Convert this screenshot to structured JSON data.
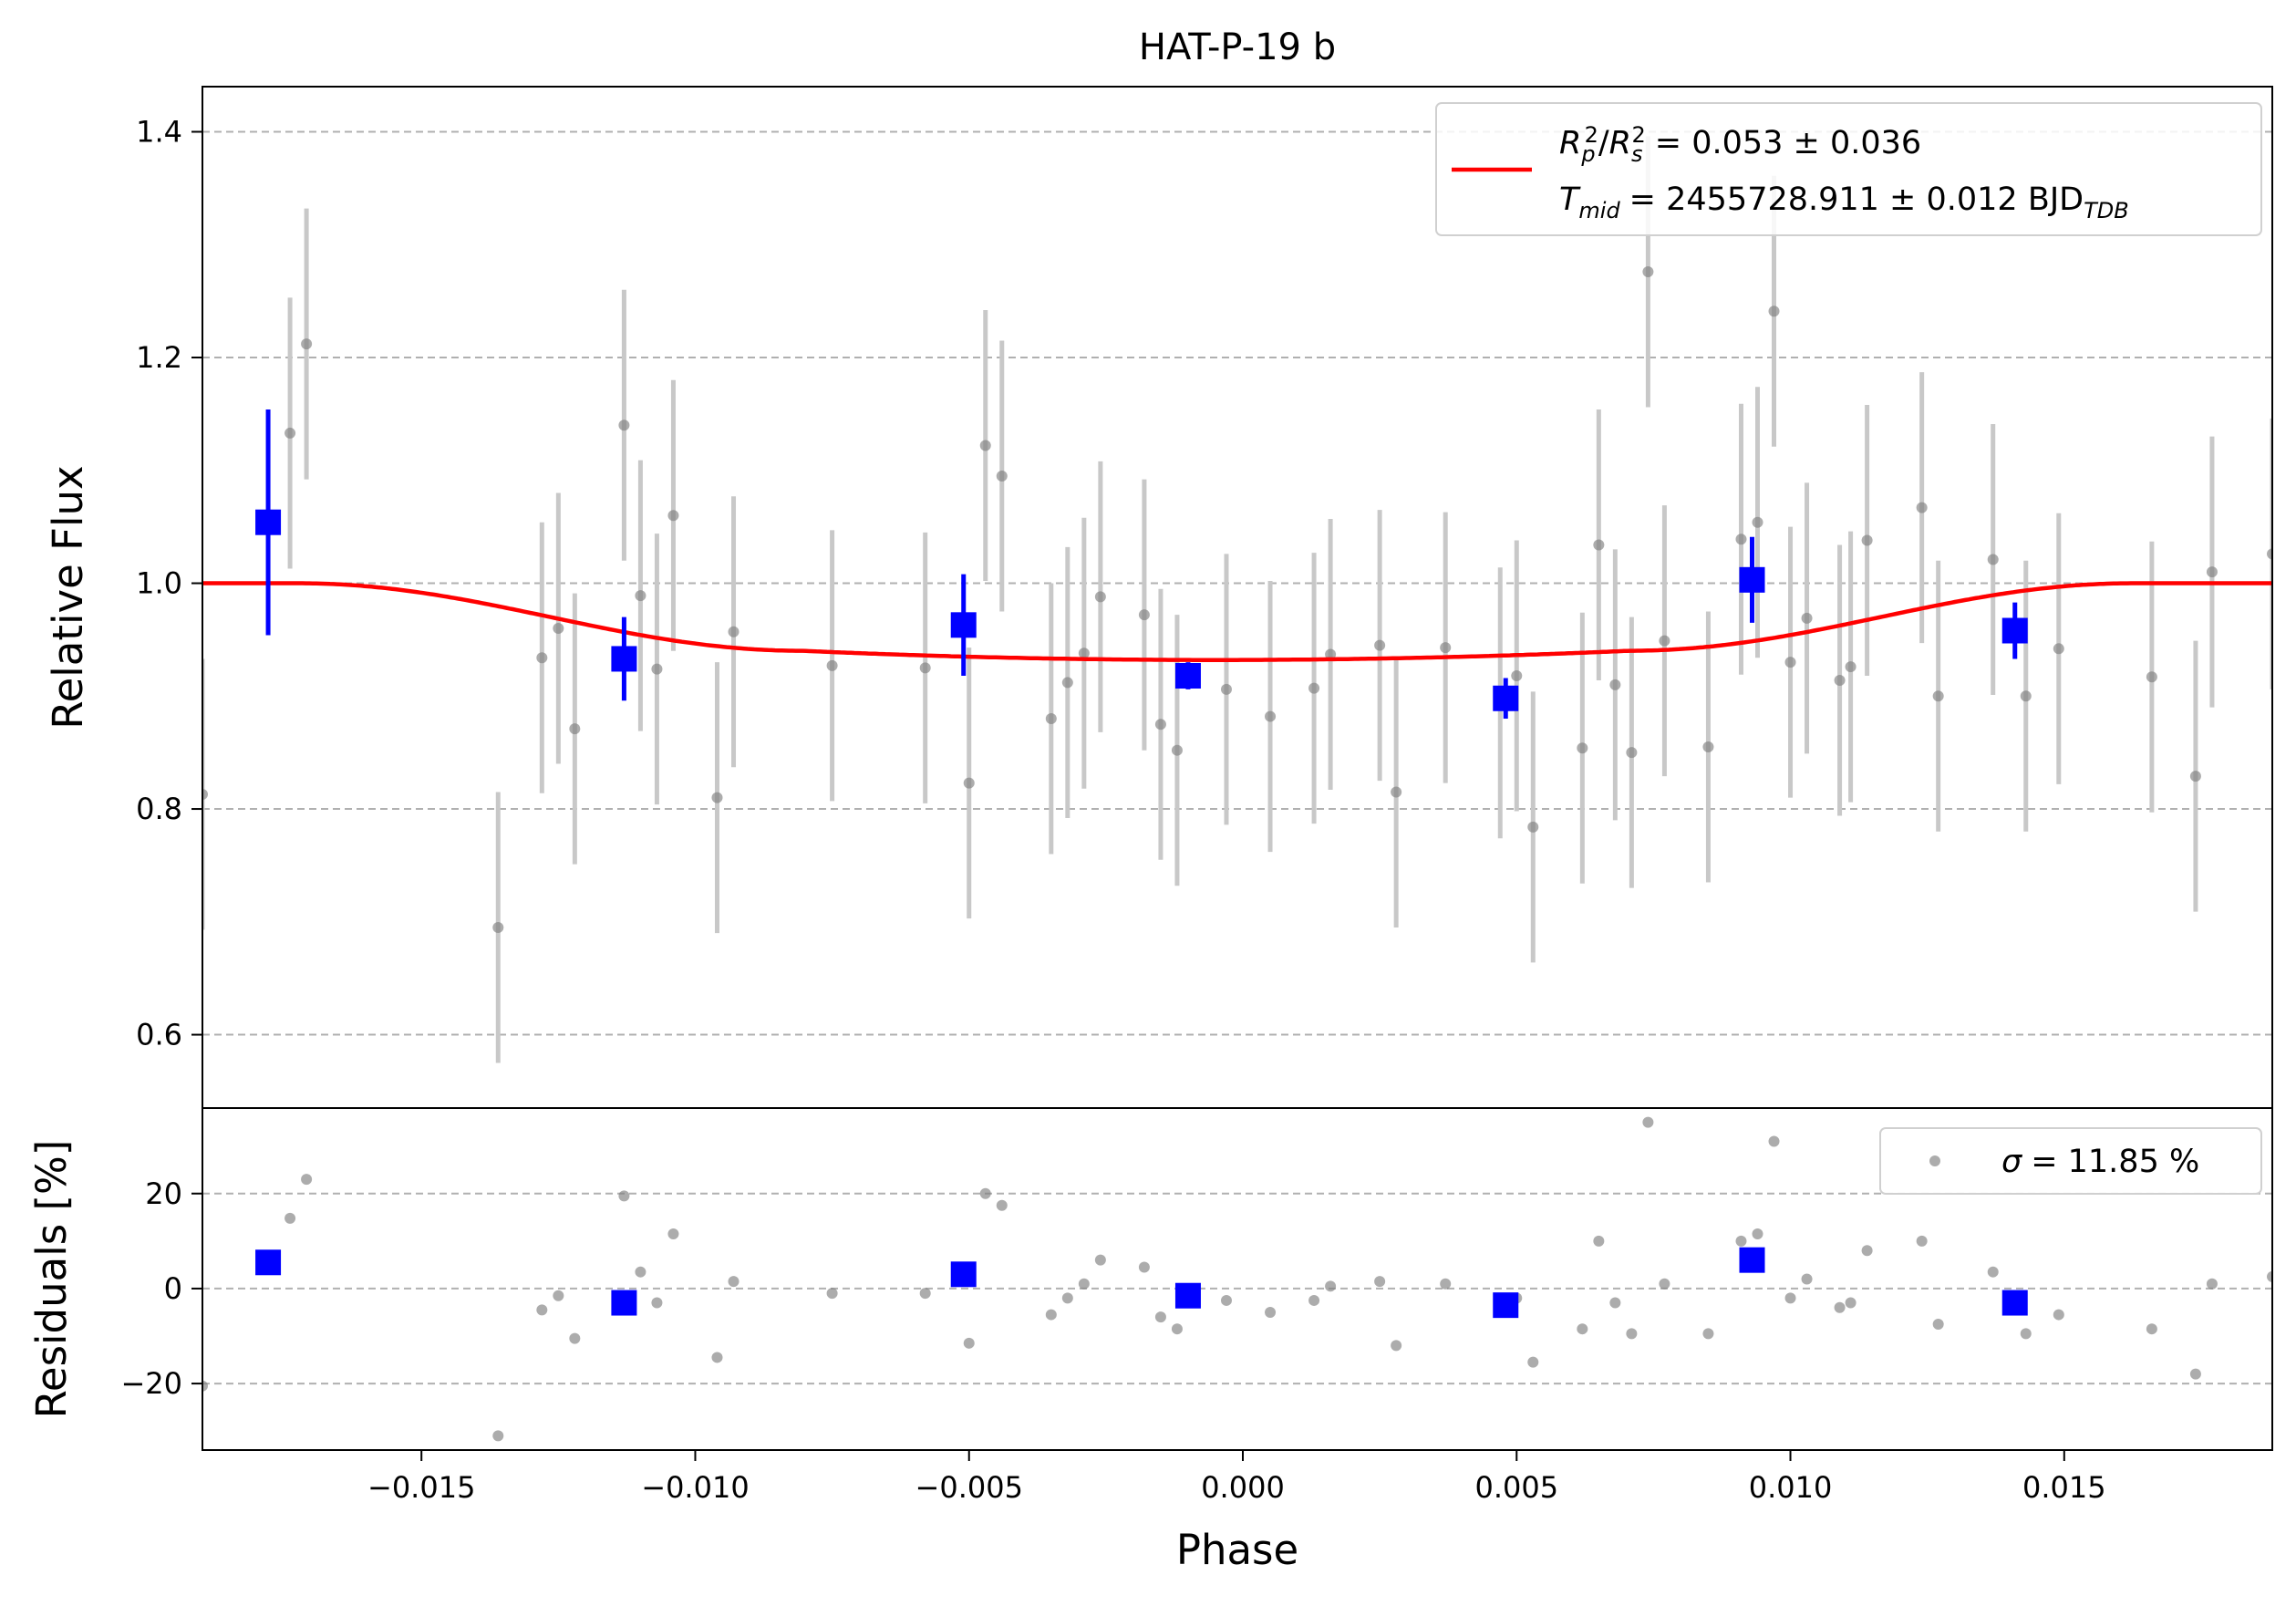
{
  "chart_data": {
    "type": "scatter",
    "title": "HAT-P-19 b",
    "xlabel": "Phase",
    "colors": {
      "raw": "#808080",
      "raw_err": "#c8c8c8",
      "binned": "#0000ff",
      "model": "#ff0000",
      "grid": "#b0b0b0"
    },
    "xlim": [
      -0.019,
      0.0188
    ],
    "xticks": [
      -0.015,
      -0.01,
      -0.005,
      0.0,
      0.005,
      0.01,
      0.015
    ],
    "xtick_labels": [
      "−0.015",
      "−0.010",
      "−0.005",
      "0.000",
      "0.005",
      "0.010",
      "0.015"
    ],
    "top_panel": {
      "ylabel": "Relative Flux",
      "ylim": [
        0.535,
        1.44
      ],
      "yticks": [
        0.6,
        0.8,
        1.0,
        1.2,
        1.4
      ],
      "ytick_labels": [
        "0.6",
        "0.8",
        "1.0",
        "1.2",
        "1.4"
      ],
      "grid": true,
      "legend": {
        "position": "top-right",
        "line1_var": "R",
        "line1_sub1": "p",
        "line1_sub2": "s",
        "line1_sup": "2",
        "line1_value": "= 0.053 ± 0.036",
        "line2_var": "T",
        "line2_sub": "mid",
        "line2_value": "= 2455728.911 ± 0.012 BJD",
        "line2_unit_sub": "TDB"
      },
      "model": {
        "depth": 0.068,
        "t_mid": -0.0005,
        "t_total": 0.0335,
        "t_ingress": 0.0092
      },
      "raw": [
        {
          "x": -0.019,
          "y": 0.813,
          "e": 0.12
        },
        {
          "x": -0.0136,
          "y": 0.695,
          "e": 0.12
        },
        {
          "x": -0.0128,
          "y": 0.934,
          "e": 0.12
        },
        {
          "x": -0.0125,
          "y": 0.96,
          "e": 0.12
        },
        {
          "x": -0.0122,
          "y": 0.871,
          "e": 0.12
        },
        {
          "x": -0.0113,
          "y": 1.14,
          "e": 0.12
        },
        {
          "x": -0.011,
          "y": 0.989,
          "e": 0.12
        },
        {
          "x": -0.0107,
          "y": 0.924,
          "e": 0.12
        },
        {
          "x": -0.0104,
          "y": 1.06,
          "e": 0.12
        },
        {
          "x": -0.0096,
          "y": 0.81,
          "e": 0.12
        },
        {
          "x": -0.0093,
          "y": 0.957,
          "e": 0.12
        },
        {
          "x": -0.0075,
          "y": 0.927,
          "e": 0.12
        },
        {
          "x": -0.0058,
          "y": 0.925,
          "e": 0.12
        },
        {
          "x": -0.005,
          "y": 0.823,
          "e": 0.12
        },
        {
          "x": -0.0047,
          "y": 1.122,
          "e": 0.12
        },
        {
          "x": -0.0044,
          "y": 1.095,
          "e": 0.12
        },
        {
          "x": -0.0035,
          "y": 0.88,
          "e": 0.12
        },
        {
          "x": -0.0032,
          "y": 0.912,
          "e": 0.12
        },
        {
          "x": -0.0029,
          "y": 0.938,
          "e": 0.12
        },
        {
          "x": -0.0026,
          "y": 0.988,
          "e": 0.12
        },
        {
          "x": -0.0018,
          "y": 0.972,
          "e": 0.12
        },
        {
          "x": -0.0015,
          "y": 0.875,
          "e": 0.12
        },
        {
          "x": -0.0012,
          "y": 0.852,
          "e": 0.12
        },
        {
          "x": -0.0003,
          "y": 0.906,
          "e": 0.12
        },
        {
          "x": 0.0005,
          "y": 0.882,
          "e": 0.12
        },
        {
          "x": 0.0013,
          "y": 0.907,
          "e": 0.12
        },
        {
          "x": 0.0016,
          "y": 0.937,
          "e": 0.12
        },
        {
          "x": 0.0025,
          "y": 0.945,
          "e": 0.12
        },
        {
          "x": 0.0028,
          "y": 0.815,
          "e": 0.12
        },
        {
          "x": 0.0037,
          "y": 0.943,
          "e": 0.12
        },
        {
          "x": 0.0047,
          "y": 0.894,
          "e": 0.12
        },
        {
          "x": 0.005,
          "y": 0.918,
          "e": 0.12
        },
        {
          "x": 0.0053,
          "y": 0.784,
          "e": 0.12
        },
        {
          "x": 0.0062,
          "y": 0.854,
          "e": 0.12
        },
        {
          "x": 0.0065,
          "y": 1.034,
          "e": 0.12
        },
        {
          "x": 0.0068,
          "y": 0.91,
          "e": 0.12
        },
        {
          "x": 0.0071,
          "y": 0.85,
          "e": 0.12
        },
        {
          "x": 0.0074,
          "y": 1.276,
          "e": 0.12
        },
        {
          "x": 0.0077,
          "y": 0.949,
          "e": 0.12
        },
        {
          "x": 0.0085,
          "y": 0.855,
          "e": 0.12
        },
        {
          "x": 0.0091,
          "y": 1.039,
          "e": 0.12
        },
        {
          "x": 0.0094,
          "y": 1.054,
          "e": 0.12
        },
        {
          "x": 0.0097,
          "y": 1.241,
          "e": 0.12
        },
        {
          "x": 0.01,
          "y": 0.93,
          "e": 0.12
        },
        {
          "x": 0.0103,
          "y": 0.969,
          "e": 0.12
        },
        {
          "x": 0.0109,
          "y": 0.914,
          "e": 0.12
        },
        {
          "x": 0.0111,
          "y": 0.926,
          "e": 0.12
        },
        {
          "x": 0.0114,
          "y": 1.038,
          "e": 0.12
        },
        {
          "x": 0.0124,
          "y": 1.067,
          "e": 0.12
        },
        {
          "x": 0.0127,
          "y": 0.9,
          "e": 0.12
        },
        {
          "x": 0.0137,
          "y": 1.021,
          "e": 0.12
        },
        {
          "x": 0.0143,
          "y": 0.9,
          "e": 0.12
        },
        {
          "x": 0.0149,
          "y": 0.942,
          "e": 0.12
        },
        {
          "x": 0.0166,
          "y": 0.917,
          "e": 0.12
        },
        {
          "x": 0.0174,
          "y": 0.829,
          "e": 0.12
        },
        {
          "x": 0.0177,
          "y": 1.01,
          "e": 0.12
        },
        {
          "x": 0.0188,
          "y": 1.026,
          "e": 0.12
        }
      ],
      "raw_early": [
        {
          "x": -0.0174,
          "y": 1.133,
          "e": 0.12
        },
        {
          "x": -0.0171,
          "y": 1.212,
          "e": 0.12
        }
      ],
      "binned": [
        {
          "x": -0.0178,
          "y": 1.054,
          "e": 0.1
        },
        {
          "x": -0.0113,
          "y": 0.933,
          "e": 0.037
        },
        {
          "x": -0.0051,
          "y": 0.963,
          "e": 0.045
        },
        {
          "x": -0.001,
          "y": 0.918,
          "e": 0.012
        },
        {
          "x": 0.0048,
          "y": 0.898,
          "e": 0.018
        },
        {
          "x": 0.0093,
          "y": 1.003,
          "e": 0.038
        },
        {
          "x": 0.0141,
          "y": 0.958,
          "e": 0.025
        }
      ]
    },
    "bottom_panel": {
      "ylabel": "Residuals [%]",
      "ylim": [
        -34,
        38
      ],
      "yticks": [
        -20,
        0,
        20
      ],
      "ytick_labels": [
        "−20",
        "0",
        "20"
      ],
      "grid": true,
      "legend": {
        "position": "top-right",
        "sigma_symbol": "σ",
        "sigma_value": "= 11.85 %"
      },
      "raw": [
        {
          "x": -0.019,
          "y": -20.5
        },
        {
          "x": -0.0174,
          "y": 14.8
        },
        {
          "x": -0.0171,
          "y": 23.0
        },
        {
          "x": -0.0136,
          "y": -31.0
        },
        {
          "x": -0.0128,
          "y": -4.5
        },
        {
          "x": -0.0125,
          "y": -1.5
        },
        {
          "x": -0.0122,
          "y": -10.5
        },
        {
          "x": -0.0113,
          "y": 19.5
        },
        {
          "x": -0.011,
          "y": 3.5
        },
        {
          "x": -0.0107,
          "y": -3.0
        },
        {
          "x": -0.0104,
          "y": 11.5
        },
        {
          "x": -0.0096,
          "y": -14.5
        },
        {
          "x": -0.0093,
          "y": 1.5
        },
        {
          "x": -0.0075,
          "y": -1.0
        },
        {
          "x": -0.0058,
          "y": -1.0
        },
        {
          "x": -0.005,
          "y": -11.5
        },
        {
          "x": -0.0047,
          "y": 20.0
        },
        {
          "x": -0.0044,
          "y": 17.5
        },
        {
          "x": -0.0035,
          "y": -5.5
        },
        {
          "x": -0.0032,
          "y": -2.0
        },
        {
          "x": -0.0029,
          "y": 1.0
        },
        {
          "x": -0.0026,
          "y": 6.0
        },
        {
          "x": -0.0018,
          "y": 4.5
        },
        {
          "x": -0.0015,
          "y": -6.0
        },
        {
          "x": -0.0012,
          "y": -8.5
        },
        {
          "x": -0.0003,
          "y": -2.5
        },
        {
          "x": 0.0005,
          "y": -5.0
        },
        {
          "x": 0.0013,
          "y": -2.5
        },
        {
          "x": 0.0016,
          "y": 0.5
        },
        {
          "x": 0.0025,
          "y": 1.5
        },
        {
          "x": 0.0028,
          "y": -12.0
        },
        {
          "x": 0.0037,
          "y": 1.0
        },
        {
          "x": 0.0047,
          "y": -4.0
        },
        {
          "x": 0.005,
          "y": -2.0
        },
        {
          "x": 0.0053,
          "y": -15.5
        },
        {
          "x": 0.0062,
          "y": -8.5
        },
        {
          "x": 0.0065,
          "y": 10.0
        },
        {
          "x": 0.0068,
          "y": -3.0
        },
        {
          "x": 0.0071,
          "y": -9.5
        },
        {
          "x": 0.0074,
          "y": 35.0
        },
        {
          "x": 0.0077,
          "y": 1.0
        },
        {
          "x": 0.0085,
          "y": -9.5
        },
        {
          "x": 0.0091,
          "y": 10.0
        },
        {
          "x": 0.0094,
          "y": 11.5
        },
        {
          "x": 0.0097,
          "y": 31.0
        },
        {
          "x": 0.01,
          "y": -2.0
        },
        {
          "x": 0.0103,
          "y": 2.0
        },
        {
          "x": 0.0109,
          "y": -4.0
        },
        {
          "x": 0.0111,
          "y": -3.0
        },
        {
          "x": 0.0114,
          "y": 8.0
        },
        {
          "x": 0.0124,
          "y": 10.0
        },
        {
          "x": 0.0127,
          "y": -7.5
        },
        {
          "x": 0.0137,
          "y": 3.5
        },
        {
          "x": 0.0143,
          "y": -9.5
        },
        {
          "x": 0.0149,
          "y": -5.5
        },
        {
          "x": 0.0166,
          "y": -8.5
        },
        {
          "x": 0.0174,
          "y": -18.0
        },
        {
          "x": 0.0177,
          "y": 1.0
        },
        {
          "x": 0.0188,
          "y": 2.5
        }
      ],
      "binned": [
        {
          "x": -0.0178,
          "y": 5.5
        },
        {
          "x": -0.0113,
          "y": -3.0
        },
        {
          "x": -0.0051,
          "y": 3.0
        },
        {
          "x": -0.001,
          "y": -1.5
        },
        {
          "x": 0.0048,
          "y": -3.5
        },
        {
          "x": 0.0093,
          "y": 6.0
        },
        {
          "x": 0.0141,
          "y": -3.0
        }
      ]
    }
  }
}
